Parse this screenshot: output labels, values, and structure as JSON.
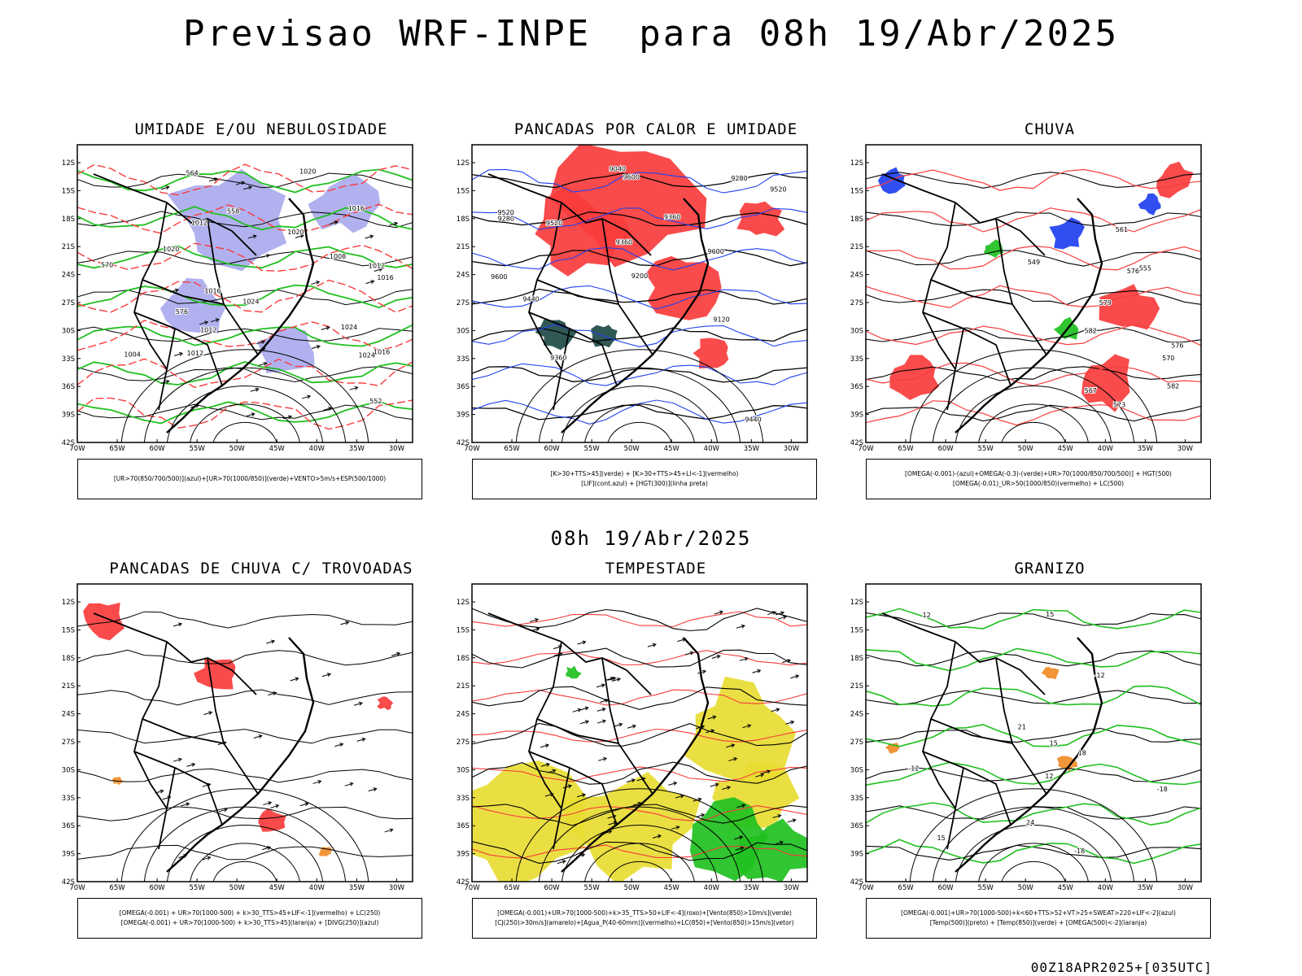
{
  "main_title": "Previsao WRF-INPE  para 08h 19/Abr/2025",
  "mid_title": "08h 19/Abr/2025",
  "footer": "00Z18APR2025+[035UTC]",
  "axes": {
    "lat_labels": [
      "12S",
      "15S",
      "18S",
      "21S",
      "24S",
      "27S",
      "30S",
      "33S",
      "36S",
      "39S",
      "42S"
    ],
    "lon_labels": [
      "70W",
      "65W",
      "60W",
      "55W",
      "50W",
      "45W",
      "40W",
      "35W",
      "30W"
    ]
  },
  "panels": [
    {
      "title": "UMIDADE E/OU NEBULOSIDADE",
      "legend": [
        "[UR>70(850/700/500)](azul)+[UR>70(1000/850)](verde)+VENTO>5m/s+ESP(500/1000)"
      ],
      "contour_labels": [
        "1012",
        "1012",
        "1020",
        "1016",
        "1016",
        "1016",
        "1012",
        "1020",
        "1024",
        "1016",
        "1020",
        "1024",
        "1008",
        "1012",
        "1004",
        "1024",
        "576",
        "570",
        "564",
        "558",
        "552"
      ]
    },
    {
      "title": "PANCADAS POR CALOR E UMIDADE",
      "legend": [
        "[K>30+TTS>45](verde) + [K>30+TTS>45+LI<-1](vermelho)",
        "[LIF](cont.azul) + [HGT(300)](linha preta)"
      ],
      "contour_labels": [
        "9600",
        "9600",
        "9600",
        "9520",
        "9520",
        "9440",
        "9440",
        "9360",
        "9360",
        "9280",
        "9200",
        "9120",
        "9040",
        "9280",
        "9520",
        "9360"
      ]
    },
    {
      "title": "CHUVA",
      "legend": [
        "[OMEGA(-0.001)-(azul)+OMEGA(-0.3)-(verde)+UR>70(1000/850/700/500)] + HGT(500)",
        "[OMEGA(-0.01)_UR>50(1000/850)(vermelho) + LC(500)"
      ],
      "contour_labels": [
        "582",
        "576",
        "576",
        "570",
        "567",
        "561",
        "555",
        "549",
        "582",
        "573",
        "579"
      ]
    },
    {
      "title": "PANCADAS DE CHUVA C/ TROVOADAS",
      "legend": [
        "[OMEGA(-0.001) + UR>70(1000-500) + k>30_TTS>45+LIF<-1](vermelho) + LC(250)",
        "[OMEGA(-0.001) + UR>70(1000-500) + k>30_TTS>45](laranja) + [DIVG(250)](azul)"
      ],
      "contour_labels": []
    },
    {
      "title": "TEMPESTADE",
      "legend": [
        "[OMEGA(-0.001)+UR>70(1000-500)+k>35_TTS>50+LIF<-4](roxo)+[Vento(850)>10m/s](verde)",
        "[CJ(250)>30m/s](amarelo)+[Agua_P(40-60mm)](vermelho)+LC(850)+[Vento(850)>15m/s](vetor)"
      ],
      "contour_labels": []
    },
    {
      "title": "GRANIZO",
      "legend": [
        "[OMEGA(-0.001)+UR>70(1000-500)+k<60+TTS>52+VT>25+SWEAT>220+LIF<-2](azul)",
        "[Temp(500)](preto) + [Temp(850)](verde) + [OMEGA(500)<-2](laranja)"
      ],
      "contour_labels": [
        "-12",
        "12",
        "-12",
        "-18",
        "-18",
        "15",
        "12",
        "15",
        "15",
        "18",
        "24",
        "21"
      ]
    }
  ],
  "colors": {
    "red": "#f83c3c",
    "blue": "#2040f0",
    "green": "#20c020",
    "lavender": "#aaaaee",
    "yellow": "#e8dc32",
    "dark_teal": "#1e4a46",
    "orange": "#f08c28"
  }
}
